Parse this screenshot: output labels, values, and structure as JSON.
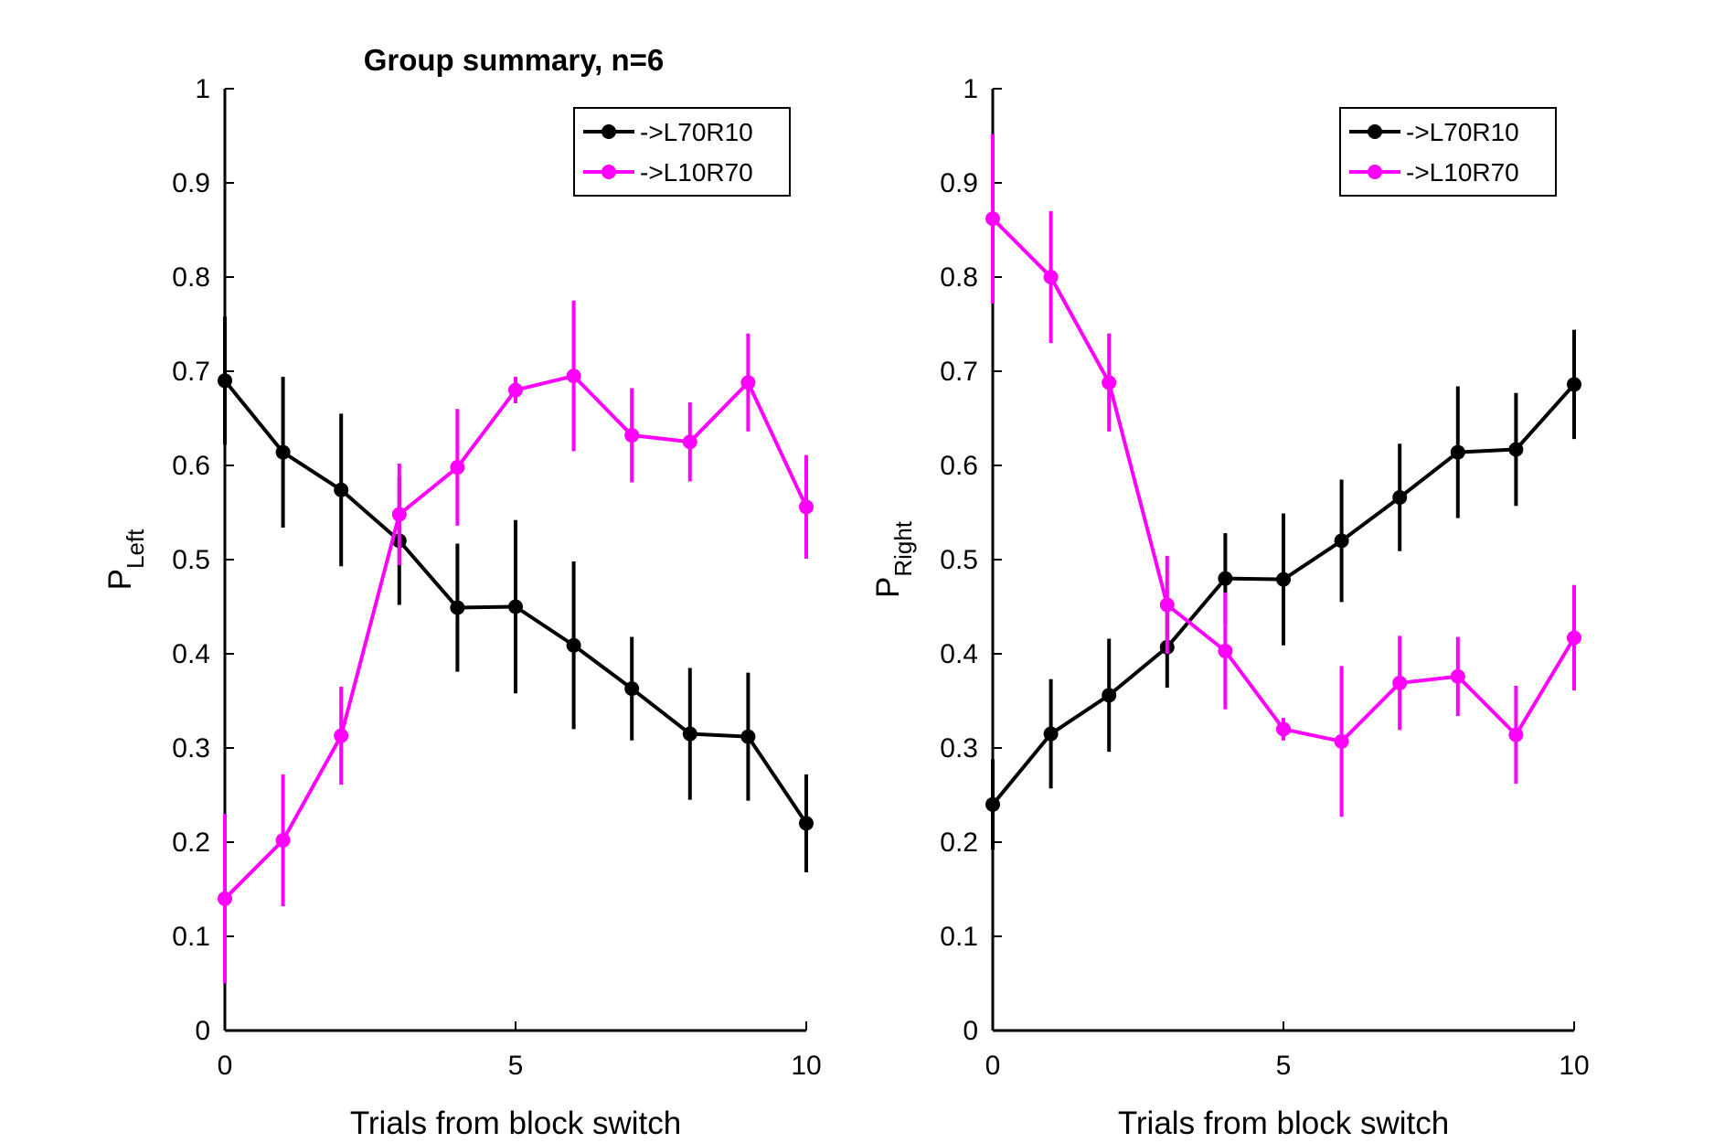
{
  "figure": {
    "title": "Group summary, n=6"
  },
  "chart_data": [
    {
      "type": "line",
      "title": "Group summary, n=6",
      "xlabel": "Trials from block switch",
      "ylabel": {
        "main": "P",
        "sub": "Left"
      },
      "xlim": [
        0,
        10
      ],
      "ylim": [
        0,
        1
      ],
      "xticks": [
        0,
        5,
        10
      ],
      "xtick_labels": [
        "0",
        "5",
        "10"
      ],
      "yticks": [
        0,
        0.1,
        0.2,
        0.3,
        0.4,
        0.5,
        0.6,
        0.7,
        0.8,
        0.9,
        1
      ],
      "ytick_labels": [
        "0",
        "0.1",
        "0.2",
        "0.3",
        "0.4",
        "0.5",
        "0.6",
        "0.7",
        "0.8",
        "0.9",
        "1"
      ],
      "grid": false,
      "legend": "top-right",
      "x": [
        0,
        1,
        2,
        3,
        4,
        5,
        6,
        7,
        8,
        9,
        10
      ],
      "series": [
        {
          "name": "->L70R10",
          "color": "#000000",
          "values": [
            0.69,
            0.614,
            0.574,
            0.52,
            0.449,
            0.45,
            0.409,
            0.363,
            0.315,
            0.312,
            0.22
          ],
          "err": [
            0.068,
            0.08,
            0.081,
            0.068,
            0.068,
            0.092,
            0.089,
            0.055,
            0.07,
            0.068,
            0.052
          ]
        },
        {
          "name": "->L10R70",
          "color": "#ff00ff",
          "values": [
            0.14,
            0.202,
            0.313,
            0.548,
            0.598,
            0.68,
            0.695,
            0.632,
            0.625,
            0.688,
            0.556
          ],
          "err": [
            0.09,
            0.07,
            0.052,
            0.054,
            0.062,
            0.014,
            0.08,
            0.05,
            0.042,
            0.052,
            0.055
          ]
        }
      ]
    },
    {
      "type": "line",
      "title": "",
      "xlabel": "Trials from block switch",
      "ylabel": {
        "main": "P",
        "sub": "Right"
      },
      "xlim": [
        0,
        10
      ],
      "ylim": [
        0,
        1
      ],
      "xticks": [
        0,
        5,
        10
      ],
      "xtick_labels": [
        "0",
        "5",
        "10"
      ],
      "yticks": [
        0,
        0.1,
        0.2,
        0.3,
        0.4,
        0.5,
        0.6,
        0.7,
        0.8,
        0.9,
        1
      ],
      "ytick_labels": [
        "0",
        "0.1",
        "0.2",
        "0.3",
        "0.4",
        "0.5",
        "0.6",
        "0.7",
        "0.8",
        "0.9",
        "1"
      ],
      "grid": false,
      "legend": "top-right",
      "x": [
        0,
        1,
        2,
        3,
        4,
        5,
        6,
        7,
        8,
        9,
        10
      ],
      "series": [
        {
          "name": "->L70R10",
          "color": "#000000",
          "values": [
            0.24,
            0.315,
            0.356,
            0.407,
            0.48,
            0.479,
            0.52,
            0.566,
            0.614,
            0.617,
            0.686
          ],
          "err": [
            0.048,
            0.058,
            0.06,
            0.043,
            0.048,
            0.07,
            0.065,
            0.057,
            0.07,
            0.06,
            0.058
          ]
        },
        {
          "name": "->L10R70",
          "color": "#ff00ff",
          "values": [
            0.862,
            0.8,
            0.688,
            0.452,
            0.403,
            0.32,
            0.307,
            0.369,
            0.376,
            0.314,
            0.417
          ],
          "err": [
            0.09,
            0.07,
            0.052,
            0.052,
            0.062,
            0.012,
            0.08,
            0.05,
            0.042,
            0.052,
            0.056
          ]
        }
      ]
    }
  ]
}
